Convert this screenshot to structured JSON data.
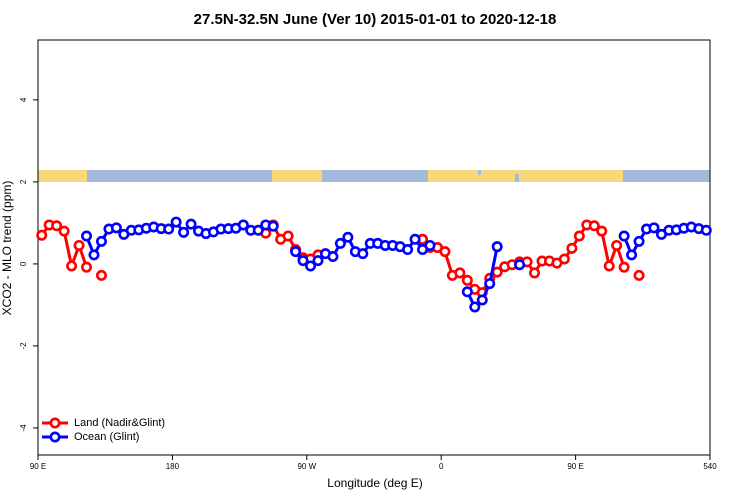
{
  "chart_data": {
    "type": "line",
    "title": "27.5N-32.5N June (Ver 10)   2015-01-01 to 2020-12-18",
    "xlabel": "Longitude (deg E)",
    "ylabel": "XCO2 - MLO trend (ppm)",
    "x": [
      92.5,
      97.5,
      102.5,
      107.5,
      112.5,
      117.5,
      122.5,
      127.5,
      132.5,
      137.5,
      142.5,
      147.5,
      152.5,
      157.5,
      162.5,
      167.5,
      172.5,
      177.5,
      182.5,
      187.5,
      192.5,
      197.5,
      202.5,
      207.5,
      212.5,
      217.5,
      222.5,
      227.5,
      232.5,
      237.5,
      242.5,
      247.5,
      252.5,
      257.5,
      262.5,
      267.5,
      272.5,
      277.5,
      282.5,
      287.5,
      292.5,
      297.5,
      302.5,
      307.5,
      312.5,
      317.5,
      322.5,
      327.5,
      332.5,
      337.5,
      342.5,
      347.5,
      352.5,
      357.5,
      362.5,
      367.5,
      372.5,
      377.5,
      382.5,
      387.5,
      392.5,
      397.5,
      402.5,
      407.5,
      412.5,
      417.5,
      422.5,
      427.5,
      432.5,
      437.5,
      442.5,
      447.5,
      452.5,
      457.5,
      462.5,
      467.5,
      472.5,
      477.5,
      482.5,
      487.5,
      492.5,
      497.5,
      502.5,
      507.5,
      512.5,
      517.5,
      522.5,
      527.5,
      532.5,
      537.5
    ],
    "series": [
      {
        "name": "Land (Nadir&Glint)",
        "color": "#ff0000",
        "values": [
          0.7,
          0.95,
          0.93,
          0.8,
          -0.05,
          0.45,
          -0.08,
          null,
          -0.28,
          null,
          null,
          null,
          null,
          null,
          null,
          null,
          null,
          null,
          null,
          null,
          null,
          null,
          null,
          null,
          null,
          null,
          null,
          null,
          null,
          null,
          0.75,
          0.95,
          0.6,
          0.68,
          0.35,
          0.15,
          0.12,
          0.22,
          null,
          null,
          null,
          null,
          null,
          null,
          null,
          null,
          null,
          null,
          null,
          null,
          null,
          0.6,
          0.4,
          0.4,
          0.3,
          -0.28,
          -0.22,
          -0.4,
          -0.62,
          -0.7,
          -0.35,
          -0.2,
          -0.07,
          -0.02,
          0.05,
          0.05,
          -0.22,
          0.07,
          0.07,
          0.02,
          0.12,
          0.38,
          0.68,
          0.95,
          0.93,
          0.8,
          -0.05,
          0.45,
          -0.08,
          null,
          -0.28,
          null,
          null,
          null,
          null,
          null,
          null,
          null,
          null,
          null
        ]
      },
      {
        "name": "Ocean (Glint)",
        "color": "#0000ff",
        "values": [
          null,
          null,
          null,
          null,
          null,
          null,
          0.68,
          0.22,
          0.55,
          0.85,
          0.88,
          0.72,
          0.82,
          0.83,
          0.87,
          0.9,
          0.86,
          0.85,
          1.02,
          0.77,
          0.97,
          0.8,
          0.74,
          0.78,
          0.85,
          0.86,
          0.87,
          0.95,
          0.82,
          0.82,
          0.95,
          0.92,
          null,
          null,
          0.3,
          0.08,
          -0.05,
          0.08,
          0.25,
          0.18,
          0.5,
          0.65,
          0.3,
          0.25,
          0.5,
          0.5,
          0.45,
          0.45,
          0.42,
          0.35,
          0.6,
          0.35,
          0.45,
          null,
          null,
          null,
          null,
          -0.68,
          -1.05,
          -0.88,
          -0.48,
          0.42,
          null,
          null,
          -0.02,
          null,
          null,
          null,
          null,
          null,
          null,
          null,
          null,
          null,
          null,
          null,
          null,
          null,
          0.68,
          0.22,
          0.55,
          0.85,
          0.88,
          0.72,
          0.82,
          0.83,
          0.87,
          0.9,
          0.86,
          0.82
        ]
      }
    ],
    "xlim": [
      90,
      540
    ],
    "xticks": [
      {
        "value": 90,
        "label": "90 E"
      },
      180,
      {
        "value": 270,
        "label": "90 W"
      },
      {
        "value": 360,
        "label": "0"
      },
      {
        "value": 450,
        "label": "90 E"
      },
      540
    ],
    "ylim": [
      -4.66,
      5.46
    ],
    "yticks": [
      -4,
      -2,
      0,
      2,
      4
    ],
    "legend": "bottom-left"
  }
}
